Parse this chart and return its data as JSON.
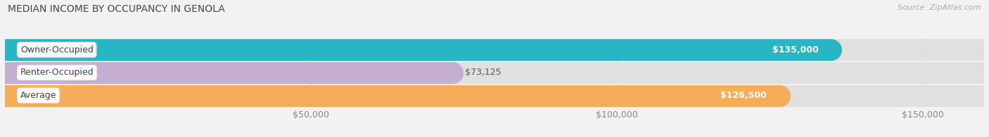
{
  "title": "MEDIAN INCOME BY OCCUPANCY IN GENOLA",
  "source": "Source: ZipAtlas.com",
  "categories": [
    "Owner-Occupied",
    "Renter-Occupied",
    "Average"
  ],
  "values": [
    135000,
    73125,
    126500
  ],
  "bar_colors": [
    "#29b5c3",
    "#c5aed0",
    "#f5ad5a"
  ],
  "value_labels": [
    "$135,000",
    "$73,125",
    "$126,500"
  ],
  "value_label_inside": [
    true,
    false,
    true
  ],
  "xlim": [
    0,
    160000
  ],
  "xticks": [
    50000,
    100000,
    150000
  ],
  "xticklabels": [
    "$50,000",
    "$100,000",
    "$150,000"
  ],
  "background_color": "#f2f2f2",
  "bar_background_color": "#e0e0e0",
  "bar_height": 0.62,
  "figsize": [
    14.06,
    1.96
  ],
  "dpi": 100
}
